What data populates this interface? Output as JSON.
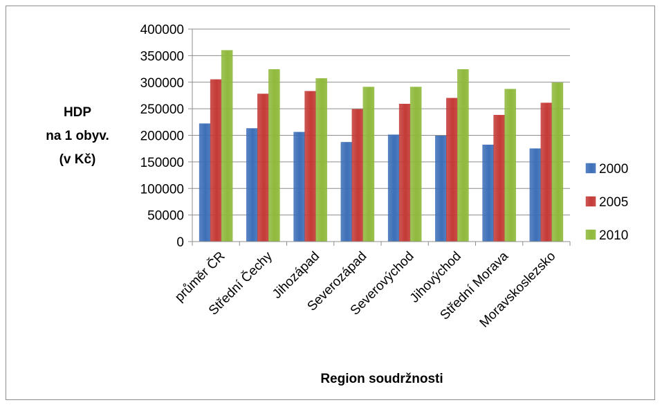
{
  "chart_data": {
    "type": "bar",
    "categories": [
      "průměr ČR",
      "Střední Čechy",
      "Jihozápad",
      "Severozápad",
      "Severovýchod",
      "Jihovýchod",
      "Střední Morava",
      "Moravskoslezsko"
    ],
    "series": [
      {
        "name": "2000",
        "color": "#3d6fb8",
        "values": [
          222000,
          213000,
          206000,
          187000,
          201000,
          199000,
          182000,
          175000
        ]
      },
      {
        "name": "2005",
        "color": "#c43a36",
        "values": [
          305000,
          278000,
          283000,
          249000,
          259000,
          270000,
          238000,
          261000
        ]
      },
      {
        "name": "2010",
        "color": "#8fb93c",
        "values": [
          360000,
          324000,
          307000,
          291000,
          291000,
          324000,
          287000,
          299000
        ]
      }
    ],
    "ylabel": [
      "HDP",
      "na 1 obyv.",
      "(v Kč)"
    ],
    "xlabel": "Region soudržnosti",
    "ylim": [
      0,
      400000
    ],
    "yticks": [
      0,
      50000,
      100000,
      150000,
      200000,
      250000,
      300000,
      350000,
      400000
    ],
    "grid": true,
    "legend_position": "right"
  }
}
